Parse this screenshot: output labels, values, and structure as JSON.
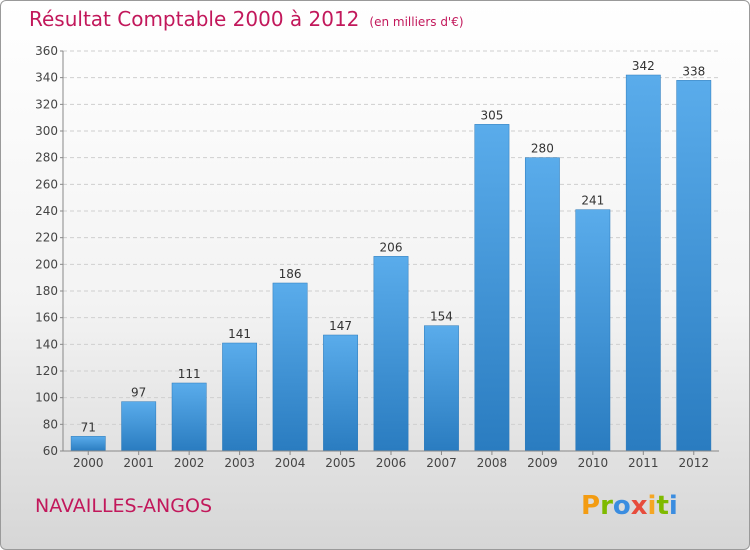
{
  "header": {
    "title": "Résultat Comptable 2000 à 2012",
    "unit": "(en milliers d'€)"
  },
  "footer": {
    "commune": "NAVAILLES-ANGOS",
    "logo_letters": [
      "P",
      "r",
      "o",
      "x",
      "i",
      "t",
      "i"
    ],
    "logo_colors": [
      "#f39c12",
      "#7fba00",
      "#3b8de0",
      "#e74c3c",
      "#f5a623",
      "#7fba00",
      "#3b8de0"
    ]
  },
  "chart_data": {
    "type": "bar",
    "title": "Résultat Comptable 2000 à 2012",
    "categories": [
      "2000",
      "2001",
      "2002",
      "2003",
      "2004",
      "2005",
      "2006",
      "2007",
      "2008",
      "2009",
      "2010",
      "2011",
      "2012"
    ],
    "values": [
      71,
      97,
      111,
      141,
      186,
      147,
      206,
      154,
      305,
      280,
      241,
      342,
      338
    ],
    "ylim": [
      60,
      360
    ],
    "yticks": [
      60,
      80,
      100,
      120,
      140,
      160,
      180,
      200,
      220,
      240,
      260,
      280,
      300,
      320,
      340,
      360
    ],
    "grid": true,
    "bar_color": "#3a92d8",
    "data_labels": true
  }
}
